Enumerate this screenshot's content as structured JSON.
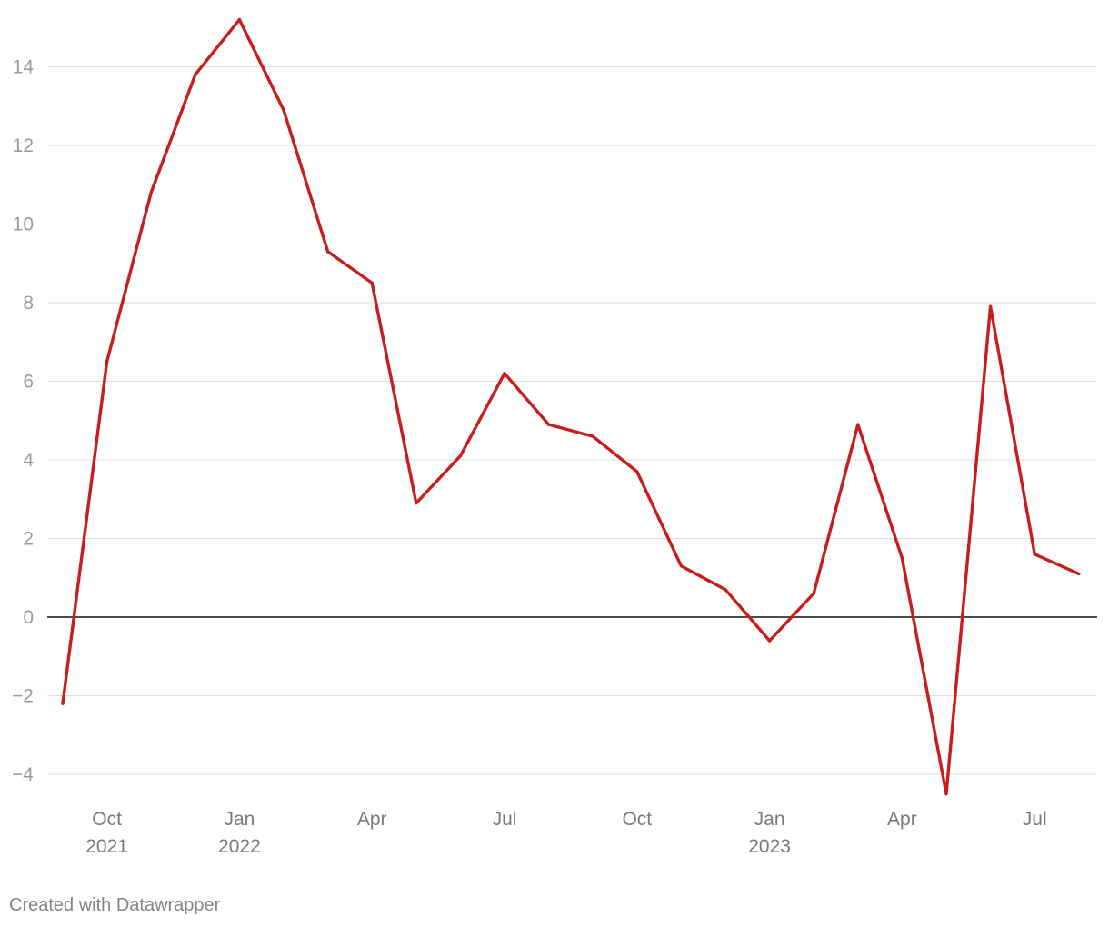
{
  "chart_data": {
    "type": "line",
    "x": [
      "2021-09",
      "2021-10",
      "2021-11",
      "2021-12",
      "2022-01",
      "2022-02",
      "2022-03",
      "2022-04",
      "2022-05",
      "2022-06",
      "2022-07",
      "2022-08",
      "2022-09",
      "2022-10",
      "2022-11",
      "2022-12",
      "2023-01",
      "2023-02",
      "2023-03",
      "2023-04",
      "2023-05",
      "2023-06",
      "2023-07",
      "2023-08"
    ],
    "series": [
      {
        "values": [
          -2.2,
          6.5,
          10.8,
          13.8,
          15.2,
          12.9,
          9.3,
          8.5,
          2.9,
          4.1,
          6.2,
          4.9,
          4.6,
          3.7,
          1.3,
          0.7,
          -0.6,
          0.6,
          4.9,
          1.5,
          -4.5,
          7.9,
          1.6,
          1.1
        ],
        "color": "#c71e1d"
      }
    ],
    "ylim": [
      -4.6,
      15.2
    ],
    "yticks": [
      -4,
      -2,
      0,
      2,
      4,
      6,
      8,
      10,
      12,
      14
    ],
    "ytick_labels": [
      "−4",
      "−2",
      "0",
      "2",
      "4",
      "6",
      "8",
      "10",
      "12",
      "14"
    ],
    "xticks": [
      {
        "x": "2021-10",
        "label": "Oct",
        "sublabel": "2021"
      },
      {
        "x": "2022-01",
        "label": "Jan",
        "sublabel": "2022"
      },
      {
        "x": "2022-04",
        "label": "Apr",
        "sublabel": ""
      },
      {
        "x": "2022-07",
        "label": "Jul",
        "sublabel": ""
      },
      {
        "x": "2022-10",
        "label": "Oct",
        "sublabel": ""
      },
      {
        "x": "2023-01",
        "label": "Jan",
        "sublabel": "2023"
      },
      {
        "x": "2023-04",
        "label": "Apr",
        "sublabel": ""
      },
      {
        "x": "2023-07",
        "label": "Jul",
        "sublabel": ""
      }
    ],
    "grid": true,
    "zero_line": true,
    "title": "",
    "xlabel": "",
    "ylabel": ""
  },
  "footer": {
    "credit": "Created with Datawrapper"
  }
}
